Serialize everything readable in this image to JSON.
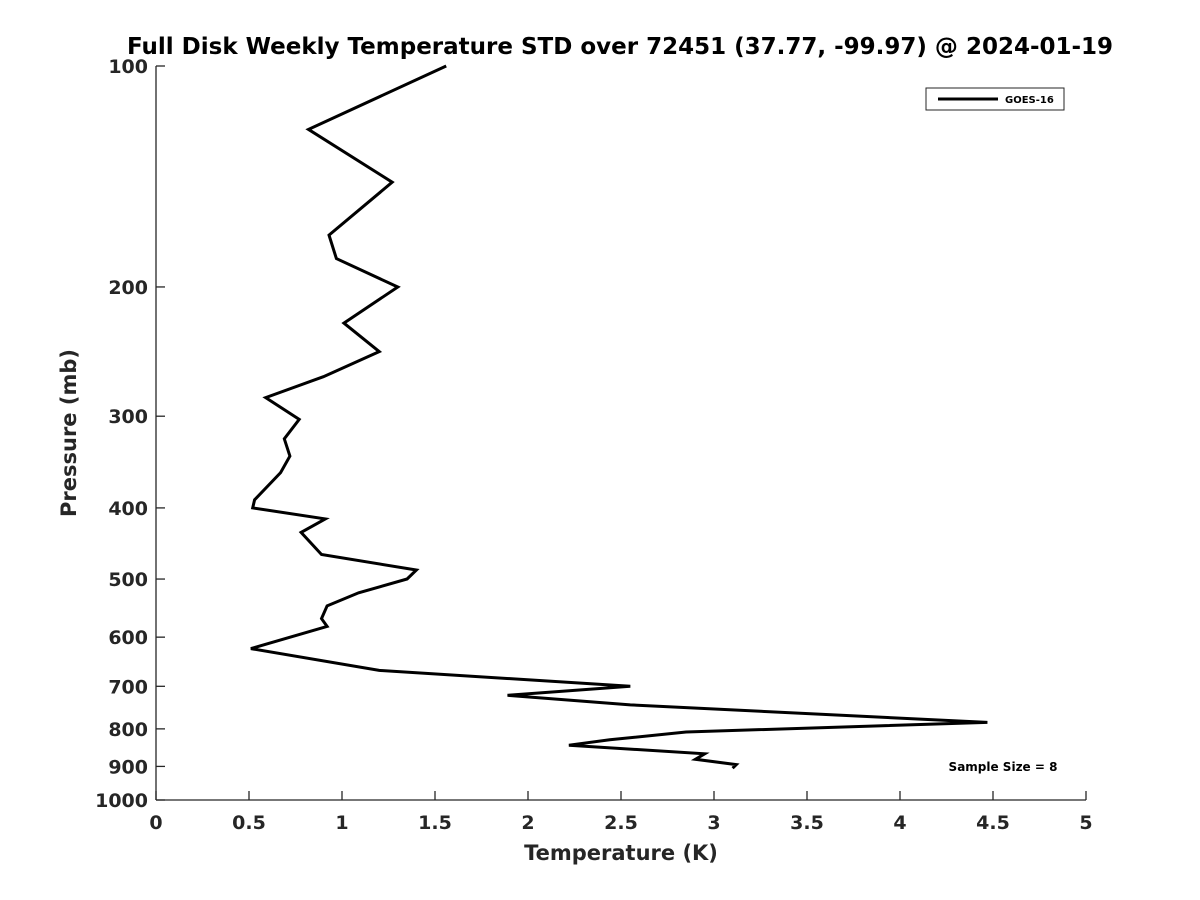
{
  "chart_data": {
    "type": "line",
    "title": "Full Disk Weekly Temperature STD over 72451 (37.77, -99.97) @ 2024-01-19",
    "xlabel": "Temperature (K)",
    "ylabel": "Pressure (mb)",
    "xlim": [
      0,
      5
    ],
    "ylim": [
      100,
      1000
    ],
    "y_scale": "log",
    "y_inverted": true,
    "x_ticks": [
      0,
      0.5,
      1,
      1.5,
      2,
      2.5,
      3,
      3.5,
      4,
      4.5,
      5
    ],
    "x_tick_labels": [
      "0",
      "0.5",
      "1",
      "1.5",
      "2",
      "2.5",
      "3",
      "3.5",
      "4",
      "4.5",
      "5"
    ],
    "y_ticks": [
      100,
      200,
      300,
      400,
      500,
      600,
      700,
      800,
      900,
      1000
    ],
    "y_tick_labels": [
      "100",
      "200",
      "300",
      "400",
      "500",
      "600",
      "700",
      "800",
      "900",
      "1000"
    ],
    "grid": false,
    "legend": {
      "placement": "top-right",
      "entries": [
        "GOES-16"
      ]
    },
    "annotation": "Sample Size = 8",
    "series": [
      {
        "name": "GOES-16",
        "color": "#000000",
        "points": [
          [
            1.56,
            100
          ],
          [
            0.82,
            122
          ],
          [
            1.27,
            144
          ],
          [
            0.93,
            170
          ],
          [
            0.97,
            183
          ],
          [
            1.3,
            200
          ],
          [
            1.01,
            224
          ],
          [
            1.2,
            245
          ],
          [
            0.9,
            265
          ],
          [
            0.59,
            283
          ],
          [
            0.77,
            303
          ],
          [
            0.69,
            322
          ],
          [
            0.72,
            340
          ],
          [
            0.67,
            358
          ],
          [
            0.53,
            390
          ],
          [
            0.52,
            400
          ],
          [
            0.91,
            414
          ],
          [
            0.78,
            432
          ],
          [
            0.89,
            463
          ],
          [
            1.4,
            486
          ],
          [
            1.35,
            500
          ],
          [
            1.09,
            522
          ],
          [
            0.92,
            544
          ],
          [
            0.89,
            566
          ],
          [
            0.92,
            580
          ],
          [
            0.51,
            622
          ],
          [
            1.2,
            666
          ],
          [
            2.55,
            700
          ],
          [
            1.89,
            720
          ],
          [
            2.55,
            742
          ],
          [
            4.47,
            784
          ],
          [
            2.85,
            808
          ],
          [
            2.44,
            828
          ],
          [
            2.22,
            842
          ],
          [
            2.95,
            865
          ],
          [
            2.9,
            880
          ],
          [
            3.12,
            895
          ],
          [
            3.1,
            905
          ]
        ]
      }
    ]
  }
}
